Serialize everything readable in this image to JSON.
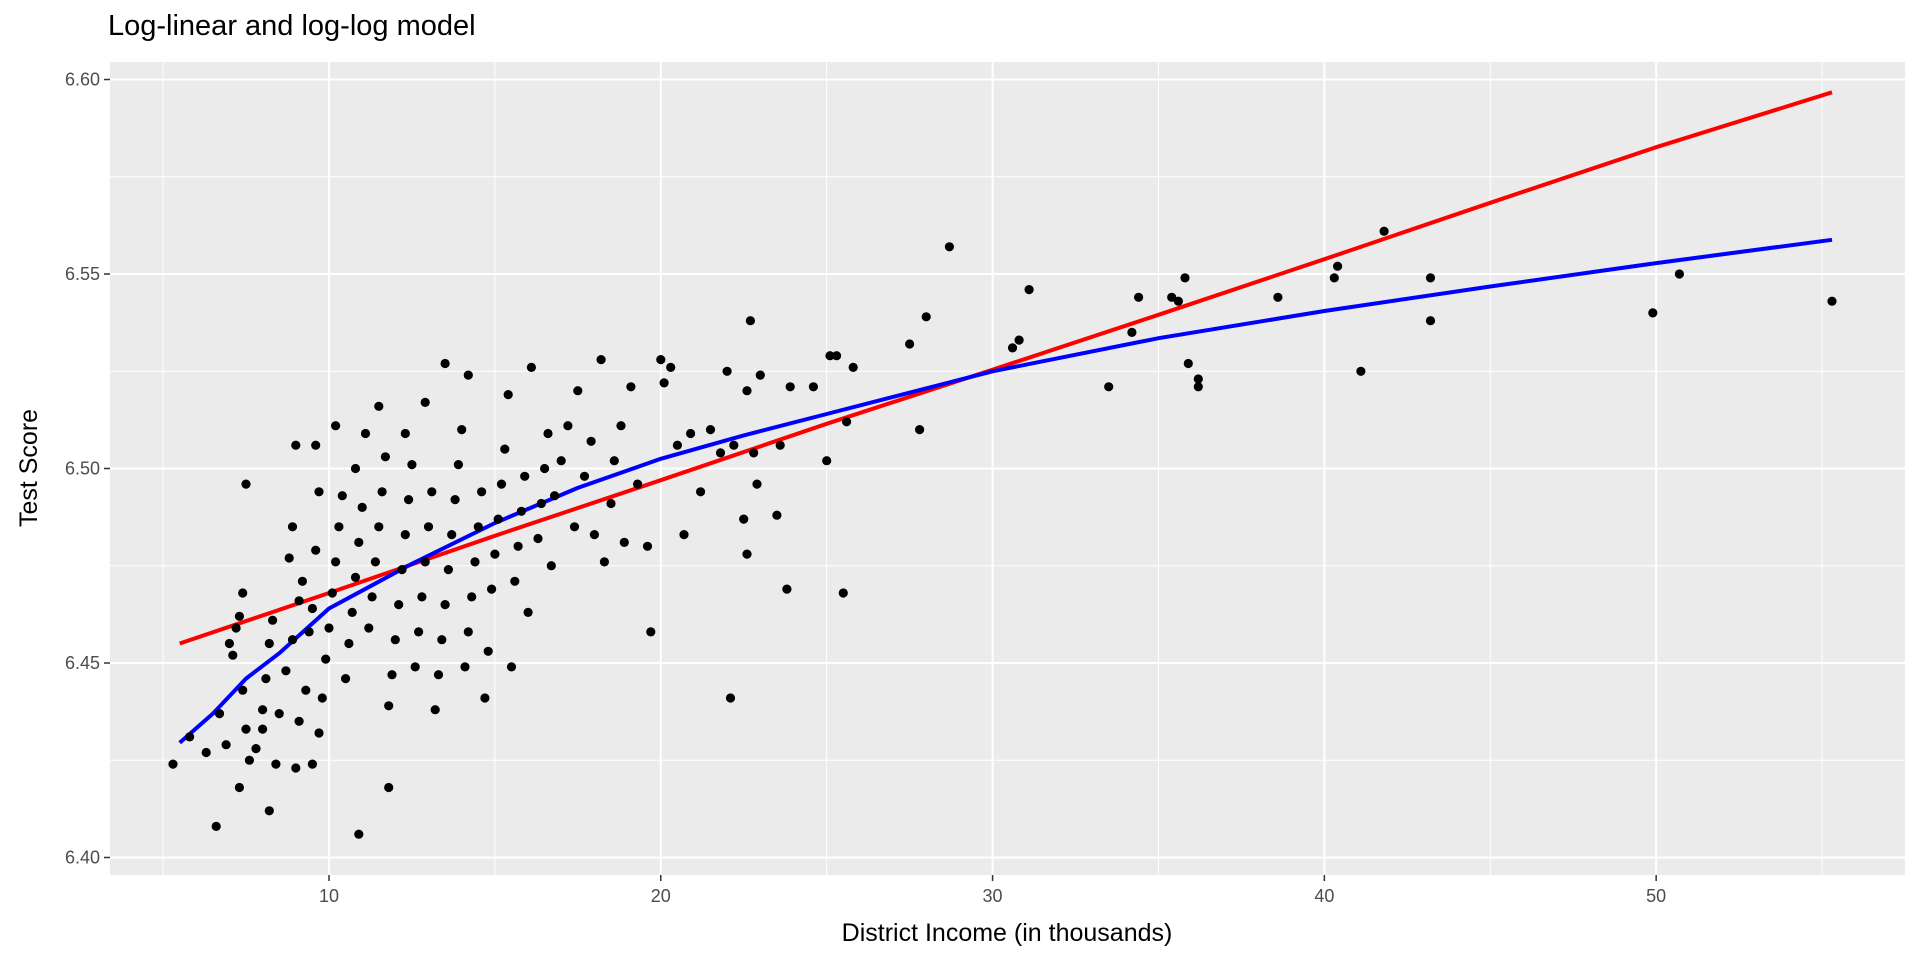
{
  "chart_data": {
    "type": "scatter",
    "title": "Log-linear and log-log model",
    "xlabel": "District Income (in thousands)",
    "ylabel": "Test Score",
    "xlim": [
      3.4,
      57.5
    ],
    "ylim": [
      6.3955,
      6.6045
    ],
    "x_ticks": [
      10,
      20,
      30,
      40,
      50
    ],
    "y_ticks": [
      6.4,
      6.45,
      6.5,
      6.55,
      6.6
    ],
    "x_tick_labels": [
      "10",
      "20",
      "30",
      "40",
      "50"
    ],
    "y_tick_labels": [
      "6.40",
      "6.45",
      "6.50",
      "6.55",
      "6.60"
    ],
    "grid": true,
    "legend": "none",
    "colors": {
      "panel": "#ebebeb",
      "grid": "#ffffff",
      "points": "#000000",
      "log_linear_line": "#ff0000",
      "log_log_line": "#0000ff"
    },
    "points": [
      [
        5.3,
        6.424
      ],
      [
        5.8,
        6.431
      ],
      [
        6.3,
        6.427
      ],
      [
        6.6,
        6.408
      ],
      [
        6.7,
        6.437
      ],
      [
        6.9,
        6.429
      ],
      [
        7.0,
        6.455
      ],
      [
        7.1,
        6.452
      ],
      [
        7.2,
        6.459
      ],
      [
        7.3,
        6.462
      ],
      [
        7.4,
        6.468
      ],
      [
        7.5,
        6.496
      ],
      [
        7.4,
        6.443
      ],
      [
        7.5,
        6.433
      ],
      [
        7.6,
        6.425
      ],
      [
        7.3,
        6.418
      ],
      [
        7.8,
        6.428
      ],
      [
        8.0,
        6.438
      ],
      [
        8.1,
        6.446
      ],
      [
        8.2,
        6.455
      ],
      [
        8.3,
        6.461
      ],
      [
        8.0,
        6.433
      ],
      [
        8.2,
        6.412
      ],
      [
        8.4,
        6.424
      ],
      [
        8.5,
        6.437
      ],
      [
        8.7,
        6.448
      ],
      [
        8.9,
        6.456
      ],
      [
        8.8,
        6.477
      ],
      [
        8.9,
        6.485
      ],
      [
        9.0,
        6.506
      ],
      [
        9.1,
        6.466
      ],
      [
        9.2,
        6.471
      ],
      [
        9.0,
        6.423
      ],
      [
        9.1,
        6.435
      ],
      [
        9.3,
        6.443
      ],
      [
        9.4,
        6.458
      ],
      [
        9.5,
        6.464
      ],
      [
        9.6,
        6.479
      ],
      [
        9.7,
        6.494
      ],
      [
        9.6,
        6.506
      ],
      [
        9.5,
        6.424
      ],
      [
        9.7,
        6.432
      ],
      [
        9.8,
        6.441
      ],
      [
        9.9,
        6.451
      ],
      [
        10.0,
        6.459
      ],
      [
        10.1,
        6.468
      ],
      [
        10.2,
        6.476
      ],
      [
        10.3,
        6.485
      ],
      [
        10.4,
        6.493
      ],
      [
        10.2,
        6.511
      ],
      [
        10.5,
        6.446
      ],
      [
        10.6,
        6.455
      ],
      [
        10.7,
        6.463
      ],
      [
        10.8,
        6.472
      ],
      [
        10.9,
        6.481
      ],
      [
        11.0,
        6.49
      ],
      [
        10.8,
        6.5
      ],
      [
        11.1,
        6.509
      ],
      [
        10.9,
        6.406
      ],
      [
        11.2,
        6.459
      ],
      [
        11.3,
        6.467
      ],
      [
        11.4,
        6.476
      ],
      [
        11.5,
        6.485
      ],
      [
        11.6,
        6.494
      ],
      [
        11.7,
        6.503
      ],
      [
        11.5,
        6.516
      ],
      [
        11.8,
        6.439
      ],
      [
        11.9,
        6.447
      ],
      [
        12.0,
        6.456
      ],
      [
        12.1,
        6.465
      ],
      [
        12.2,
        6.474
      ],
      [
        11.8,
        6.418
      ],
      [
        12.3,
        6.483
      ],
      [
        12.4,
        6.492
      ],
      [
        12.5,
        6.501
      ],
      [
        12.3,
        6.509
      ],
      [
        12.6,
        6.449
      ],
      [
        12.7,
        6.458
      ],
      [
        12.8,
        6.467
      ],
      [
        12.9,
        6.476
      ],
      [
        13.0,
        6.485
      ],
      [
        13.1,
        6.494
      ],
      [
        12.9,
        6.517
      ],
      [
        13.2,
        6.438
      ],
      [
        13.3,
        6.447
      ],
      [
        13.4,
        6.456
      ],
      [
        13.5,
        6.465
      ],
      [
        13.6,
        6.474
      ],
      [
        13.7,
        6.483
      ],
      [
        13.8,
        6.492
      ],
      [
        13.9,
        6.501
      ],
      [
        13.5,
        6.527
      ],
      [
        14.0,
        6.51
      ],
      [
        14.1,
        6.449
      ],
      [
        14.2,
        6.458
      ],
      [
        14.3,
        6.467
      ],
      [
        14.4,
        6.476
      ],
      [
        14.5,
        6.485
      ],
      [
        14.6,
        6.494
      ],
      [
        14.2,
        6.524
      ],
      [
        14.7,
        6.441
      ],
      [
        14.8,
        6.453
      ],
      [
        14.9,
        6.469
      ],
      [
        15.0,
        6.478
      ],
      [
        15.1,
        6.487
      ],
      [
        15.2,
        6.496
      ],
      [
        15.3,
        6.505
      ],
      [
        15.4,
        6.519
      ],
      [
        15.5,
        6.449
      ],
      [
        15.6,
        6.471
      ],
      [
        15.7,
        6.48
      ],
      [
        15.8,
        6.489
      ],
      [
        15.9,
        6.498
      ],
      [
        16.0,
        6.463
      ],
      [
        16.1,
        6.526
      ],
      [
        16.3,
        6.482
      ],
      [
        16.4,
        6.491
      ],
      [
        16.5,
        6.5
      ],
      [
        16.6,
        6.509
      ],
      [
        16.7,
        6.475
      ],
      [
        16.8,
        6.493
      ],
      [
        17.0,
        6.502
      ],
      [
        17.2,
        6.511
      ],
      [
        17.4,
        6.485
      ],
      [
        17.5,
        6.52
      ],
      [
        17.7,
        6.498
      ],
      [
        17.9,
        6.507
      ],
      [
        18.0,
        6.483
      ],
      [
        18.2,
        6.528
      ],
      [
        18.3,
        6.476
      ],
      [
        18.5,
        6.491
      ],
      [
        18.6,
        6.502
      ],
      [
        18.8,
        6.511
      ],
      [
        18.9,
        6.481
      ],
      [
        19.1,
        6.521
      ],
      [
        19.3,
        6.496
      ],
      [
        19.6,
        6.48
      ],
      [
        19.7,
        6.458
      ],
      [
        20.0,
        6.528
      ],
      [
        20.1,
        6.522
      ],
      [
        20.3,
        6.526
      ],
      [
        20.5,
        6.506
      ],
      [
        20.7,
        6.483
      ],
      [
        20.9,
        6.509
      ],
      [
        21.2,
        6.494
      ],
      [
        21.5,
        6.51
      ],
      [
        21.8,
        6.504
      ],
      [
        22.0,
        6.525
      ],
      [
        22.1,
        6.441
      ],
      [
        22.2,
        6.506
      ],
      [
        22.5,
        6.487
      ],
      [
        22.6,
        6.478
      ],
      [
        22.6,
        6.52
      ],
      [
        22.7,
        6.538
      ],
      [
        22.8,
        6.504
      ],
      [
        22.9,
        6.496
      ],
      [
        23.0,
        6.524
      ],
      [
        23.5,
        6.488
      ],
      [
        23.6,
        6.506
      ],
      [
        23.8,
        6.469
      ],
      [
        23.9,
        6.521
      ],
      [
        24.6,
        6.521
      ],
      [
        25.0,
        6.502
      ],
      [
        25.1,
        6.529
      ],
      [
        25.3,
        6.529
      ],
      [
        25.5,
        6.468
      ],
      [
        25.6,
        6.512
      ],
      [
        25.8,
        6.526
      ],
      [
        27.5,
        6.532
      ],
      [
        27.8,
        6.51
      ],
      [
        28.0,
        6.539
      ],
      [
        28.7,
        6.557
      ],
      [
        30.6,
        6.531
      ],
      [
        30.8,
        6.533
      ],
      [
        31.1,
        6.546
      ],
      [
        33.5,
        6.521
      ],
      [
        34.2,
        6.535
      ],
      [
        34.4,
        6.544
      ],
      [
        35.4,
        6.544
      ],
      [
        35.6,
        6.543
      ],
      [
        35.8,
        6.549
      ],
      [
        35.9,
        6.527
      ],
      [
        36.2,
        6.521
      ],
      [
        36.2,
        6.523
      ],
      [
        38.6,
        6.544
      ],
      [
        40.3,
        6.549
      ],
      [
        40.4,
        6.552
      ],
      [
        41.1,
        6.525
      ],
      [
        41.8,
        6.561
      ],
      [
        43.2,
        6.549
      ],
      [
        43.2,
        6.538
      ],
      [
        49.9,
        6.54
      ],
      [
        50.7,
        6.55
      ],
      [
        55.3,
        6.543
      ]
    ],
    "series": [
      {
        "values": [
          [
            5.5,
            6.455
          ],
          [
            10,
            6.468
          ],
          [
            15,
            6.4827
          ],
          [
            20,
            6.497
          ],
          [
            25,
            6.5115
          ],
          [
            30,
            6.5254
          ],
          [
            35,
            6.5395
          ],
          [
            40,
            6.5538
          ],
          [
            45,
            6.5683
          ],
          [
            50,
            6.5826
          ],
          [
            55.3,
            6.5967
          ]
        ]
      },
      {
        "values": [
          [
            5.5,
            6.4295
          ],
          [
            6.5,
            6.437
          ],
          [
            7.5,
            6.446
          ],
          [
            8.5,
            6.4525
          ],
          [
            10,
            6.464
          ],
          [
            12.5,
            6.4755
          ],
          [
            15,
            6.486
          ],
          [
            17.5,
            6.495
          ],
          [
            20,
            6.5025
          ],
          [
            22.5,
            6.5085
          ],
          [
            25,
            6.514
          ],
          [
            30,
            6.525
          ],
          [
            35,
            6.5335
          ],
          [
            40,
            6.5405
          ],
          [
            45,
            6.5468
          ],
          [
            50,
            6.5528
          ],
          [
            55.3,
            6.5588
          ]
        ]
      }
    ]
  }
}
